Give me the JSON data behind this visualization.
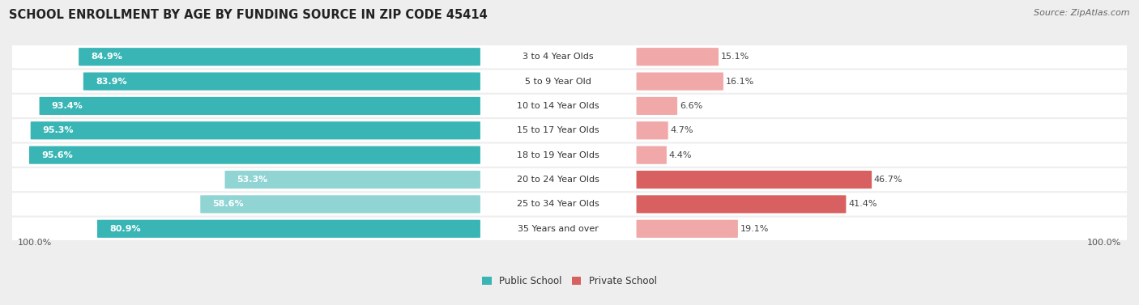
{
  "title": "SCHOOL ENROLLMENT BY AGE BY FUNDING SOURCE IN ZIP CODE 45414",
  "source": "Source: ZipAtlas.com",
  "categories": [
    "3 to 4 Year Olds",
    "5 to 9 Year Old",
    "10 to 14 Year Olds",
    "15 to 17 Year Olds",
    "18 to 19 Year Olds",
    "20 to 24 Year Olds",
    "25 to 34 Year Olds",
    "35 Years and over"
  ],
  "public_pct": [
    84.9,
    83.9,
    93.4,
    95.3,
    95.6,
    53.3,
    58.6,
    80.9
  ],
  "private_pct": [
    15.1,
    16.1,
    6.6,
    4.7,
    4.4,
    46.7,
    41.4,
    19.1
  ],
  "public_color_strong": "#3ab5b5",
  "public_color_light": "#90d4d4",
  "private_color_strong": "#d96060",
  "private_color_light": "#f0a8a8",
  "bg_color": "#eeeeee",
  "title_fontsize": 10.5,
  "source_fontsize": 8,
  "bar_label_fontsize": 8,
  "cat_label_fontsize": 8,
  "legend_fontsize": 8.5
}
